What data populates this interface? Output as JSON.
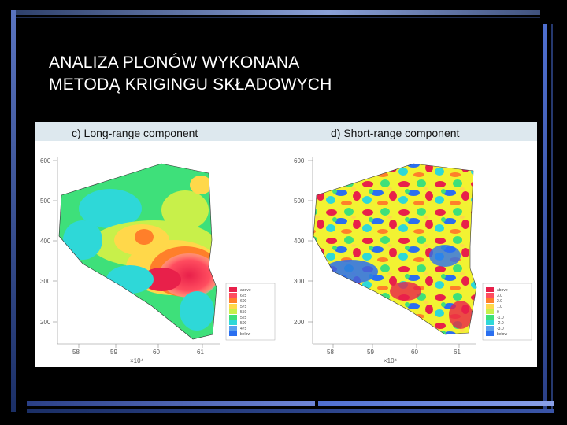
{
  "slide": {
    "title_line1": "ANALIZA PLONÓW WYKONANA",
    "title_line2": "METODĄ KRIGINGU SKŁADOWYCH"
  },
  "colors": {
    "background": "#000000",
    "accent_blue": "#4f6fd0",
    "accent_dark": "#1b2f66",
    "scale": [
      "#e8204a",
      "#ff7f2a",
      "#ffd84a",
      "#c8f04a",
      "#3ee07a",
      "#2ed8d8",
      "#2a6ff0"
    ]
  },
  "chart_data": [
    {
      "type": "heatmap",
      "title": "c) Long-range component",
      "y_ticks": [
        "600",
        "500",
        "400",
        "300",
        "200"
      ],
      "x_ticks": [
        "58",
        "59",
        "60",
        "61"
      ],
      "x_multiplier": "×10⁴",
      "legend": [
        "above",
        "625",
        "600",
        "575",
        "550",
        "525",
        "500",
        "475",
        "below"
      ]
    },
    {
      "type": "heatmap",
      "title": "d) Short-range component",
      "y_ticks": [
        "600",
        "500",
        "400",
        "300",
        "200"
      ],
      "x_ticks": [
        "58",
        "59",
        "60",
        "61"
      ],
      "x_multiplier": "×10⁴",
      "legend": [
        "above",
        "3.0",
        "2.0",
        "1.0",
        "0",
        "-1.0",
        "-2.0",
        "-3.0",
        "below"
      ]
    }
  ]
}
